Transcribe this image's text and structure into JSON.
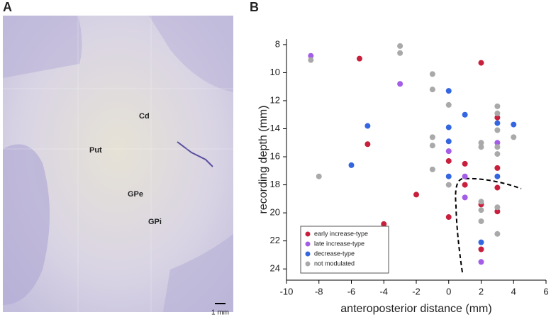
{
  "panel_labels": [
    "A",
    "B"
  ],
  "panel_a": {
    "annotations": [
      "Cd",
      "Put",
      "GPe",
      "GPi"
    ],
    "scale_bar": "1 mm"
  },
  "chart_data": {
    "type": "scatter",
    "x_label": "anteroposterior distance (mm)",
    "y_label": "recording depth (mm)",
    "xlim": [
      -10,
      6
    ],
    "xticks": [
      -10,
      -8,
      -6,
      -4,
      -2,
      0,
      2,
      4,
      6
    ],
    "ylim": [
      7.6,
      24.8
    ],
    "yticks": [
      8,
      10,
      12,
      14,
      16,
      18,
      20,
      22,
      24
    ],
    "y_reversed": true,
    "legend": "lower-left",
    "series": [
      {
        "name": "early increase-type",
        "color": "#c8203c",
        "x": [
          -5.5,
          -5,
          -2,
          -4,
          0,
          0,
          1,
          1,
          2,
          2,
          2,
          3,
          3,
          3,
          3
        ],
        "values": [
          9.0,
          15.1,
          18.7,
          20.8,
          16.3,
          20.3,
          16.5,
          18.0,
          9.3,
          19.4,
          22.6,
          13.2,
          16.8,
          18.2,
          19.9
        ]
      },
      {
        "name": "late increase-type",
        "color": "#a35de6",
        "x": [
          -8.5,
          -3,
          0,
          1,
          1,
          2,
          3
        ],
        "values": [
          8.8,
          10.8,
          15.6,
          17.4,
          18.9,
          23.5,
          15.0
        ]
      },
      {
        "name": "decrease-type",
        "color": "#3366e0",
        "x": [
          -5,
          -6,
          0,
          0,
          0,
          0,
          1,
          2,
          3,
          3,
          4
        ],
        "values": [
          13.8,
          16.6,
          11.3,
          13.9,
          14.9,
          17.4,
          13.0,
          22.1,
          13.6,
          17.4,
          13.7
        ]
      },
      {
        "name": "not modulated",
        "color": "#a9a9a9",
        "x": [
          -8.5,
          -8,
          -3,
          -3,
          -1,
          -1,
          -1,
          -1,
          -1,
          0,
          0,
          2,
          2,
          2,
          2,
          2,
          3,
          3,
          3,
          3,
          3,
          3,
          3,
          4
        ],
        "values": [
          9.1,
          17.4,
          8.1,
          8.6,
          10.1,
          11.2,
          14.6,
          15.2,
          16.9,
          12.3,
          18.0,
          15.0,
          15.3,
          19.2,
          19.8,
          20.6,
          12.4,
          12.9,
          14.1,
          15.3,
          15.8,
          19.6,
          21.5,
          14.6
        ]
      }
    ]
  }
}
